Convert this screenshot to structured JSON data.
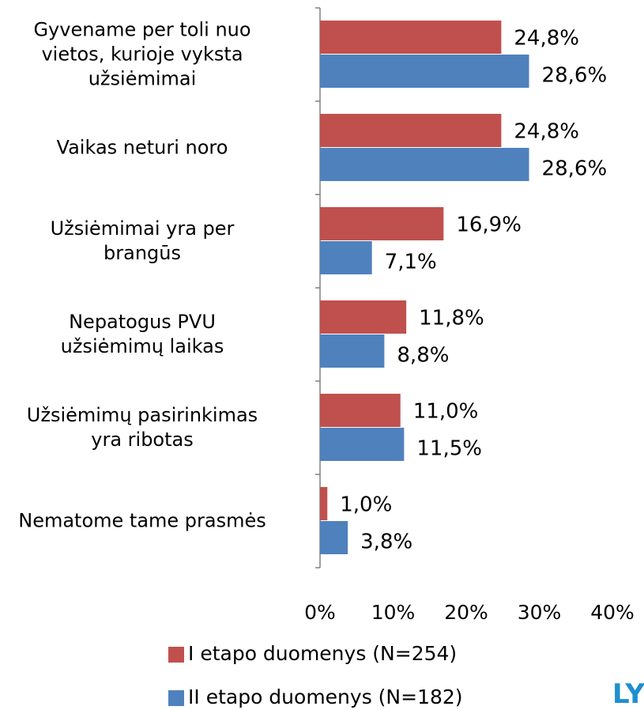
{
  "chart_data": {
    "type": "hbar",
    "categories": [
      "Gyvename per toli nuo\nvietos, kurioje vyksta\nužsiėmimai",
      "Vaikas neturi noro",
      "Užsiėmimai yra per\nbrangūs",
      "Nepatogus PVU\nužsiėmimų laikas",
      "Užsiėmimų pasirinkimas\nyra ribotas",
      "Nematome tame prasmės"
    ],
    "series": [
      {
        "name": "I etapo duomenys (N=254)",
        "color": "#c0504d",
        "values": [
          24.8,
          24.8,
          16.9,
          11.8,
          11.0,
          1.0
        ],
        "value_labels": [
          "24,8%",
          "24,8%",
          "16,9%",
          "11,8%",
          "11,0%",
          "1,0%"
        ]
      },
      {
        "name": "II etapo duomenys (N=182)",
        "color": "#4f81bd",
        "values": [
          28.6,
          28.6,
          7.1,
          8.8,
          11.5,
          3.8
        ],
        "value_labels": [
          "28,6%",
          "28,6%",
          "7,1%",
          "8,8%",
          "11,5%",
          "3,8%"
        ]
      }
    ],
    "xlim": [
      0,
      40
    ],
    "xticks": [
      {
        "value": 0,
        "label": "0%"
      },
      {
        "value": 10,
        "label": "10%"
      },
      {
        "value": 20,
        "label": "20%"
      },
      {
        "value": 30,
        "label": "30%"
      },
      {
        "value": 40,
        "label": "40%"
      }
    ],
    "logo": "LY"
  }
}
